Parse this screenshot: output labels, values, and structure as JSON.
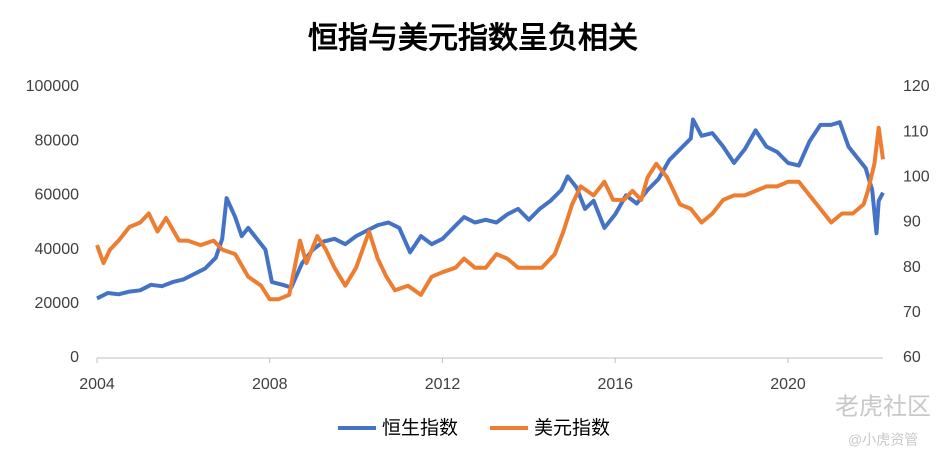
{
  "chart_data": {
    "type": "line",
    "title": "恒指与美元指数呈负相关",
    "xlim": [
      2004,
      2022.2
    ],
    "xticks": [
      2004,
      2008,
      2012,
      2016,
      2020
    ],
    "ylim": [
      0,
      100000
    ],
    "yticks": [
      0,
      20000,
      40000,
      60000,
      80000,
      100000
    ],
    "y2lim": [
      60,
      120
    ],
    "y2ticks": [
      60,
      70,
      80,
      90,
      100,
      110,
      120
    ],
    "legend": "bottom",
    "annotations": [
      "老虎社区",
      "@小虎资管"
    ],
    "series": [
      {
        "name": "恒生指数",
        "color": "#4472c4",
        "x": [
          2004.0,
          2004.25,
          2004.5,
          2004.75,
          2005.0,
          2005.25,
          2005.5,
          2005.75,
          2006.0,
          2006.25,
          2006.5,
          2006.75,
          2006.9,
          2007.0,
          2007.2,
          2007.35,
          2007.5,
          2007.7,
          2007.9,
          2008.05,
          2008.3,
          2008.5,
          2008.75,
          2009.0,
          2009.25,
          2009.5,
          2009.75,
          2010.0,
          2010.25,
          2010.5,
          2010.75,
          2011.0,
          2011.25,
          2011.5,
          2011.75,
          2012.0,
          2012.25,
          2012.5,
          2012.75,
          2013.0,
          2013.25,
          2013.5,
          2013.75,
          2014.0,
          2014.25,
          2014.5,
          2014.75,
          2014.9,
          2015.1,
          2015.3,
          2015.5,
          2015.75,
          2016.0,
          2016.25,
          2016.5,
          2016.75,
          2017.0,
          2017.25,
          2017.5,
          2017.75,
          2017.8,
          2018.0,
          2018.25,
          2018.5,
          2018.75,
          2019.0,
          2019.25,
          2019.5,
          2019.75,
          2020.0,
          2020.25,
          2020.5,
          2020.75,
          2021.0,
          2021.2,
          2021.4,
          2021.6,
          2021.8,
          2021.95,
          2022.05,
          2022.1,
          2022.2
        ],
        "values": [
          22000,
          24000,
          23500,
          24500,
          25000,
          27000,
          26500,
          28000,
          29000,
          31000,
          33000,
          37000,
          44000,
          59000,
          52000,
          45000,
          48000,
          44000,
          40000,
          28000,
          27000,
          26000,
          35000,
          40000,
          43000,
          44000,
          42000,
          45000,
          47000,
          49000,
          50000,
          48000,
          39000,
          45000,
          42000,
          44000,
          48000,
          52000,
          50000,
          51000,
          50000,
          53000,
          55000,
          51000,
          55000,
          58000,
          62000,
          67000,
          63000,
          55000,
          58000,
          48000,
          53000,
          60000,
          57000,
          62000,
          66000,
          73000,
          77000,
          81000,
          88000,
          82000,
          83000,
          78000,
          72000,
          77000,
          84000,
          78000,
          76000,
          72000,
          71000,
          80000,
          86000,
          86000,
          87000,
          78000,
          74000,
          70000,
          62000,
          46000,
          58000,
          61000
        ]
      },
      {
        "name": "美元指数",
        "color": "#ed7d31",
        "axis": "y2",
        "x": [
          2004.0,
          2004.15,
          2004.3,
          2004.5,
          2004.75,
          2005.0,
          2005.2,
          2005.4,
          2005.6,
          2005.9,
          2006.1,
          2006.4,
          2006.7,
          2006.9,
          2007.2,
          2007.5,
          2007.8,
          2008.0,
          2008.2,
          2008.45,
          2008.7,
          2008.85,
          2009.1,
          2009.3,
          2009.5,
          2009.75,
          2010.0,
          2010.3,
          2010.5,
          2010.7,
          2010.9,
          2011.2,
          2011.5,
          2011.75,
          2012.0,
          2012.3,
          2012.5,
          2012.75,
          2013.0,
          2013.25,
          2013.5,
          2013.75,
          2014.0,
          2014.3,
          2014.6,
          2014.8,
          2015.0,
          2015.2,
          2015.5,
          2015.75,
          2015.95,
          2016.2,
          2016.4,
          2016.6,
          2016.75,
          2016.95,
          2017.2,
          2017.5,
          2017.75,
          2018.0,
          2018.25,
          2018.5,
          2018.75,
          2019.0,
          2019.25,
          2019.5,
          2019.75,
          2020.0,
          2020.25,
          2020.5,
          2020.75,
          2021.0,
          2021.25,
          2021.5,
          2021.75,
          2021.85,
          2022.0,
          2022.1,
          2022.2
        ],
        "values": [
          85,
          81,
          84,
          86,
          89,
          90,
          92,
          88,
          91,
          86,
          86,
          85,
          86,
          84,
          83,
          78,
          76,
          73,
          73,
          74,
          86,
          81,
          87,
          84,
          80,
          76,
          80,
          88,
          82,
          78,
          75,
          76,
          74,
          78,
          79,
          80,
          82,
          80,
          80,
          83,
          82,
          80,
          80,
          80,
          83,
          88,
          94,
          98,
          96,
          99,
          95,
          95,
          97,
          95,
          100,
          103,
          100,
          94,
          93,
          90,
          92,
          95,
          96,
          96,
          97,
          98,
          98,
          99,
          99,
          96,
          93,
          90,
          92,
          92,
          94,
          97,
          103,
          111,
          104
        ]
      }
    ]
  }
}
